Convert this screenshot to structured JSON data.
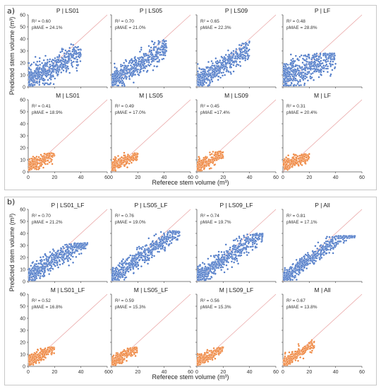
{
  "sections": [
    {
      "label": "a)",
      "ylabel": "Predicted stem volume (m³)",
      "xlabel": "Referece stem volume (m³)"
    },
    {
      "label": "b)",
      "ylabel": "Predicted stem volume (m³)",
      "xlabel": "Referece stem volume (m³)"
    }
  ],
  "colors": {
    "P": "#4472c4",
    "M": "#ed7d31",
    "identity_line": "#e8a0a0"
  },
  "chart_data": [
    {
      "type": "scatter",
      "title": "P | LS01",
      "group": "P",
      "r2": "R² = 0.60",
      "pmae": "pMAE = 24.1%",
      "xlim": [
        0,
        60
      ],
      "ylim": [
        0,
        60
      ],
      "xticks": [
        "0",
        "20",
        "40",
        "60"
      ],
      "yticks": [
        "0",
        "10",
        "20",
        "30",
        "40",
        "50",
        "60"
      ],
      "cloud": {
        "xmin": 0.5,
        "xmax": 40,
        "slope": 0.55,
        "intercept": 6,
        "spread": 5,
        "cap": 36,
        "n": 520
      }
    },
    {
      "type": "scatter",
      "title": "P | LS05",
      "group": "P",
      "r2": "R² = 0.70",
      "pmae": "pMAE = 21.0%",
      "xlim": [
        0,
        60
      ],
      "ylim": [
        0,
        60
      ],
      "xticks": [
        "0",
        "20",
        "40",
        "60"
      ],
      "yticks": [
        "0",
        "10",
        "20",
        "30",
        "40",
        "50",
        "60"
      ],
      "cloud": {
        "xmin": 0.5,
        "xmax": 42,
        "slope": 0.72,
        "intercept": 4,
        "spread": 4.5,
        "cap": 40,
        "n": 520
      }
    },
    {
      "type": "scatter",
      "title": "P | LS09",
      "group": "P",
      "r2": "R² = 0.65",
      "pmae": "pMAE = 22.3%",
      "xlim": [
        0,
        60
      ],
      "ylim": [
        0,
        60
      ],
      "xticks": [
        "0",
        "20",
        "40",
        "60"
      ],
      "yticks": [
        "0",
        "10",
        "20",
        "30",
        "40",
        "50",
        "60"
      ],
      "cloud": {
        "xmin": 0.5,
        "xmax": 40,
        "slope": 0.68,
        "intercept": 4,
        "spread": 4.5,
        "cap": 38,
        "n": 520
      }
    },
    {
      "type": "scatter",
      "title": "P | LF",
      "group": "P",
      "r2": "R² = 0.48",
      "pmae": "pMAE = 28.8%",
      "xlim": [
        0,
        60
      ],
      "ylim": [
        0,
        60
      ],
      "xticks": [
        "0",
        "20",
        "40",
        "60"
      ],
      "yticks": [
        "0",
        "10",
        "20",
        "30",
        "40",
        "50",
        "60"
      ],
      "cloud": {
        "xmin": 0.5,
        "xmax": 40,
        "slope": 0.45,
        "intercept": 8,
        "spread": 6,
        "cap": 28,
        "n": 520
      }
    },
    {
      "type": "scatter",
      "title": "M | LS01",
      "group": "M",
      "r2": "R² = 0.41",
      "pmae": "pMAE = 18.9%",
      "xlim": [
        0,
        60
      ],
      "ylim": [
        0,
        60
      ],
      "xticks": [
        "0",
        "20",
        "40",
        "60"
      ],
      "yticks": [
        "0",
        "10",
        "20",
        "30",
        "40",
        "50",
        "60"
      ],
      "cloud": {
        "xmin": 0.5,
        "xmax": 20,
        "slope": 0.45,
        "intercept": 5,
        "spread": 2.5,
        "cap": 16,
        "n": 240
      }
    },
    {
      "type": "scatter",
      "title": "M | LS05",
      "group": "M",
      "r2": "R² = 0.49",
      "pmae": "pMAE = 17.0%",
      "xlim": [
        0,
        60
      ],
      "ylim": [
        0,
        60
      ],
      "xticks": [
        "0",
        "20",
        "40",
        "60"
      ],
      "yticks": [
        "0",
        "10",
        "20",
        "30",
        "40",
        "50",
        "60"
      ],
      "cloud": {
        "xmin": 0.5,
        "xmax": 20,
        "slope": 0.5,
        "intercept": 4.5,
        "spread": 2.5,
        "cap": 16,
        "n": 240
      }
    },
    {
      "type": "scatter",
      "title": "M | LS09",
      "group": "M",
      "r2": "R² = 0.45",
      "pmae": "pMAE =17.4%",
      "xlim": [
        0,
        60
      ],
      "ylim": [
        0,
        60
      ],
      "xticks": [
        "0",
        "20",
        "40",
        "60"
      ],
      "yticks": [
        "0",
        "10",
        "20",
        "30",
        "40",
        "50",
        "60"
      ],
      "cloud": {
        "xmin": 0.5,
        "xmax": 20,
        "slope": 0.5,
        "intercept": 4.5,
        "spread": 2.5,
        "cap": 17,
        "n": 240
      }
    },
    {
      "type": "scatter",
      "title": "M | LF",
      "group": "M",
      "r2": "R² = 0.31",
      "pmae": "pMAE = 20.4%",
      "xlim": [
        0,
        60
      ],
      "ylim": [
        0,
        60
      ],
      "xticks": [
        "0",
        "20",
        "40",
        "60"
      ],
      "yticks": [
        "0",
        "10",
        "20",
        "30",
        "40",
        "50",
        "60"
      ],
      "cloud": {
        "xmin": 0.5,
        "xmax": 20,
        "slope": 0.35,
        "intercept": 6,
        "spread": 2.5,
        "cap": 15,
        "n": 240
      }
    },
    {
      "type": "scatter",
      "title": "P | LS01_LF",
      "group": "P",
      "r2": "R² = 0.70",
      "pmae": "pMAE = 21.2%",
      "xlim": [
        0,
        60
      ],
      "ylim": [
        0,
        60
      ],
      "xticks": [
        "0",
        "20",
        "40",
        "60"
      ],
      "yticks": [
        "0",
        "10",
        "20",
        "30",
        "40",
        "50",
        "60"
      ],
      "cloud": {
        "xmin": 0.5,
        "xmax": 45,
        "slope": 0.7,
        "intercept": 4,
        "spread": 4,
        "cap": 32,
        "n": 560
      }
    },
    {
      "type": "scatter",
      "title": "P | LS05_LF",
      "group": "P",
      "r2": "R² = 0.76",
      "pmae": "pMAE = 19.0%",
      "xlim": [
        0,
        60
      ],
      "ylim": [
        0,
        60
      ],
      "xticks": [
        "0",
        "20",
        "40",
        "60"
      ],
      "yticks": [
        "0",
        "10",
        "20",
        "30",
        "40",
        "50",
        "60"
      ],
      "cloud": {
        "xmin": 0.5,
        "xmax": 52,
        "slope": 0.78,
        "intercept": 3,
        "spread": 3.8,
        "cap": 42,
        "n": 560
      }
    },
    {
      "type": "scatter",
      "title": "P | LS09_LF",
      "group": "P",
      "r2": "R² = 0.74",
      "pmae": "pMAE = 19.7%",
      "xlim": [
        0,
        60
      ],
      "ylim": [
        0,
        60
      ],
      "xticks": [
        "0",
        "20",
        "40",
        "60"
      ],
      "yticks": [
        "0",
        "10",
        "20",
        "30",
        "40",
        "50",
        "60"
      ],
      "cloud": {
        "xmin": 0.5,
        "xmax": 50,
        "slope": 0.75,
        "intercept": 3,
        "spread": 4,
        "cap": 40,
        "n": 560
      }
    },
    {
      "type": "scatter",
      "title": "P | All",
      "group": "P",
      "r2": "R² = 0.81",
      "pmae": "pMAE = 17.1%",
      "xlim": [
        0,
        60
      ],
      "ylim": [
        0,
        60
      ],
      "xticks": [
        "0",
        "20",
        "40",
        "60"
      ],
      "yticks": [
        "0",
        "10",
        "20",
        "30",
        "40",
        "50",
        "60"
      ],
      "cloud": {
        "xmin": 0.5,
        "xmax": 55,
        "slope": 0.8,
        "intercept": 2.5,
        "spread": 3.2,
        "cap": 38,
        "n": 560
      }
    },
    {
      "type": "scatter",
      "title": "M | LS01_LF",
      "group": "M",
      "r2": "R² = 0.52",
      "pmae": "pMAE = 16.8%",
      "xlim": [
        0,
        60
      ],
      "ylim": [
        0,
        60
      ],
      "xticks": [
        "0",
        "20",
        "40",
        "60"
      ],
      "yticks": [
        "0",
        "10",
        "20",
        "30",
        "40",
        "50",
        "60"
      ],
      "cloud": {
        "xmin": 0.5,
        "xmax": 20,
        "slope": 0.55,
        "intercept": 4,
        "spread": 2.3,
        "cap": 16,
        "n": 260
      }
    },
    {
      "type": "scatter",
      "title": "M | LS05_LF",
      "group": "M",
      "r2": "R² = 0.59",
      "pmae": "pMAE = 15.3%",
      "xlim": [
        0,
        60
      ],
      "ylim": [
        0,
        60
      ],
      "xticks": [
        "0",
        "20",
        "40",
        "60"
      ],
      "yticks": [
        "0",
        "10",
        "20",
        "30",
        "40",
        "50",
        "60"
      ],
      "cloud": {
        "xmin": 0.5,
        "xmax": 20,
        "slope": 0.6,
        "intercept": 3.5,
        "spread": 2.2,
        "cap": 16,
        "n": 260
      }
    },
    {
      "type": "scatter",
      "title": "M | LS09_LF",
      "group": "M",
      "r2": "R² = 0.56",
      "pmae": "pMAE = 15.3%",
      "xlim": [
        0,
        60
      ],
      "ylim": [
        0,
        60
      ],
      "xticks": [
        "0",
        "20",
        "40",
        "60"
      ],
      "yticks": [
        "0",
        "10",
        "20",
        "30",
        "40",
        "50",
        "60"
      ],
      "cloud": {
        "xmin": 0.5,
        "xmax": 20,
        "slope": 0.6,
        "intercept": 3.5,
        "spread": 2.2,
        "cap": 16,
        "n": 260
      }
    },
    {
      "type": "scatter",
      "title": "M | All",
      "group": "M",
      "r2": "R² = 0.67",
      "pmae": "pMAE = 13.8%",
      "xlim": [
        0,
        60
      ],
      "ylim": [
        0,
        60
      ],
      "xticks": [
        "0",
        "20",
        "40",
        "60"
      ],
      "yticks": [
        "0",
        "10",
        "20",
        "30",
        "40",
        "50",
        "60"
      ],
      "cloud": {
        "xmin": 0.5,
        "xmax": 24,
        "slope": 0.65,
        "intercept": 3,
        "spread": 2.2,
        "cap": 22,
        "n": 260
      }
    }
  ]
}
